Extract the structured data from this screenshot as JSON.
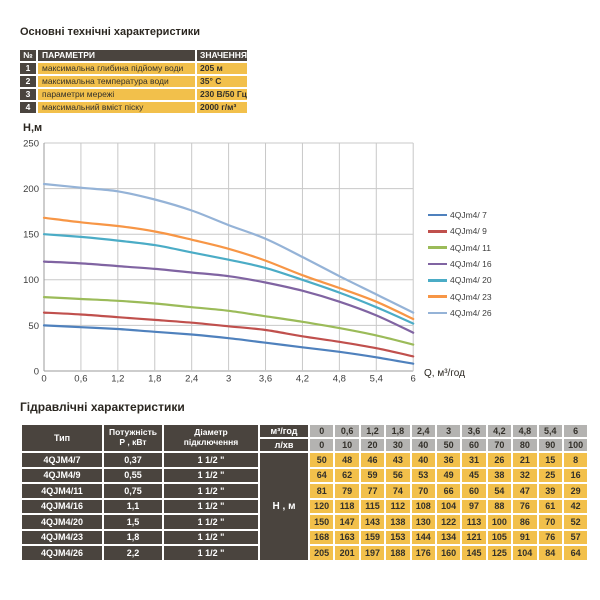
{
  "palette": {
    "dark_cell": "#4a443e",
    "yellow_cell": "#f2c04b",
    "gray_cell": "#b4b3b1"
  },
  "top_section": {
    "title": "Основні технічні характеристики",
    "table": {
      "headers": {
        "num": "№",
        "param": "ПАРАМЕТРИ",
        "value": "ЗНАЧЕННЯ"
      },
      "rows": [
        {
          "num": "1",
          "param": "максимальна глибина підйому води",
          "value": "205 м"
        },
        {
          "num": "2",
          "param": "максимальна температура води",
          "value": "35° С"
        },
        {
          "num": "3",
          "param": "параметри мережі",
          "value": "230 В/50 Гц"
        },
        {
          "num": "4",
          "param": "максимальний вміст піску",
          "value": "2000 г/м³"
        }
      ]
    }
  },
  "chart_data": {
    "type": "line",
    "title": "",
    "ylabel": "Н,м",
    "xlabel": "Q,  м³/год",
    "x": [
      0,
      0.6,
      1.2,
      1.8,
      2.4,
      3,
      3.6,
      4.2,
      4.8,
      5.4,
      6
    ],
    "x_tick_labels": [
      "0",
      "0,6",
      "1,2",
      "1,8",
      "2,4",
      "3",
      "3,6",
      "4,2",
      "4,8",
      "5,4",
      "6"
    ],
    "xlim": [
      0,
      6
    ],
    "ylim": [
      0,
      250
    ],
    "y_ticks": [
      0,
      50,
      100,
      150,
      200,
      250
    ],
    "grid": true,
    "legend_position": "right",
    "series": [
      {
        "name": "4QJm4/ 7",
        "color": "#4F81BD",
        "values": [
          50,
          48,
          46,
          43,
          40,
          36,
          31,
          26,
          21,
          15,
          8
        ]
      },
      {
        "name": "4QJm4/ 9",
        "color": "#C0504D",
        "values": [
          64,
          62,
          59,
          56,
          53,
          49,
          45,
          38,
          32,
          25,
          16
        ]
      },
      {
        "name": "4QJm4/ 11",
        "color": "#9BBB59",
        "values": [
          81,
          79,
          77,
          74,
          70,
          66,
          60,
          54,
          47,
          39,
          29
        ]
      },
      {
        "name": "4QJm4/ 16",
        "color": "#8064A2",
        "values": [
          120,
          118,
          115,
          112,
          108,
          104,
          97,
          88,
          76,
          61,
          42
        ]
      },
      {
        "name": "4QJm4/ 20",
        "color": "#4BACC6",
        "values": [
          150,
          147,
          143,
          138,
          130,
          122,
          113,
          100,
          86,
          70,
          52
        ]
      },
      {
        "name": "4QJm4/ 23",
        "color": "#F79646",
        "values": [
          168,
          163,
          159,
          153,
          144,
          134,
          121,
          105,
          91,
          76,
          57
        ]
      },
      {
        "name": "4QJm4/ 26",
        "color": "#95B3D7",
        "values": [
          205,
          201,
          197,
          188,
          176,
          160,
          145,
          125,
          104,
          84,
          64
        ]
      }
    ]
  },
  "hydraulic_section": {
    "title": "Гідравлічні характеристики",
    "table": {
      "headers": {
        "type": "Тип",
        "power_line1": "Потужність",
        "power_line2": "Р , кВт",
        "diameter_line1": "Діаметр",
        "diameter_line2": "підключення",
        "flow_m3": "м³/год",
        "flow_lmin": "л/хв",
        "head_label": "Н , м"
      },
      "flow_m3_values": [
        "0",
        "0,6",
        "1,2",
        "1,8",
        "2,4",
        "3",
        "3,6",
        "4,2",
        "4,8",
        "5,4",
        "6"
      ],
      "flow_lmin_values": [
        "0",
        "10",
        "20",
        "30",
        "40",
        "50",
        "60",
        "70",
        "80",
        "90",
        "100"
      ],
      "rows": [
        {
          "type": "4QJM4/7",
          "power": "0,37",
          "diameter": "1 1/2 \"",
          "heads": [
            "50",
            "48",
            "46",
            "43",
            "40",
            "36",
            "31",
            "26",
            "21",
            "15",
            "8"
          ]
        },
        {
          "type": "4QJM4/9",
          "power": "0,55",
          "diameter": "1 1/2 \"",
          "heads": [
            "64",
            "62",
            "59",
            "56",
            "53",
            "49",
            "45",
            "38",
            "32",
            "25",
            "16"
          ]
        },
        {
          "type": "4QJM4/11",
          "power": "0,75",
          "diameter": "1 1/2 \"",
          "heads": [
            "81",
            "79",
            "77",
            "74",
            "70",
            "66",
            "60",
            "54",
            "47",
            "39",
            "29"
          ]
        },
        {
          "type": "4QJM4/16",
          "power": "1,1",
          "diameter": "1 1/2 \"",
          "heads": [
            "120",
            "118",
            "115",
            "112",
            "108",
            "104",
            "97",
            "88",
            "76",
            "61",
            "42"
          ]
        },
        {
          "type": "4QJM4/20",
          "power": "1,5",
          "diameter": "1 1/2 \"",
          "heads": [
            "150",
            "147",
            "143",
            "138",
            "130",
            "122",
            "113",
            "100",
            "86",
            "70",
            "52"
          ]
        },
        {
          "type": "4QJM4/23",
          "power": "1,8",
          "diameter": "1 1/2 \"",
          "heads": [
            "168",
            "163",
            "159",
            "153",
            "144",
            "134",
            "121",
            "105",
            "91",
            "76",
            "57"
          ]
        },
        {
          "type": "4QJM4/26",
          "power": "2,2",
          "diameter": "1 1/2 \"",
          "heads": [
            "205",
            "201",
            "197",
            "188",
            "176",
            "160",
            "145",
            "125",
            "104",
            "84",
            "64"
          ]
        }
      ]
    }
  }
}
